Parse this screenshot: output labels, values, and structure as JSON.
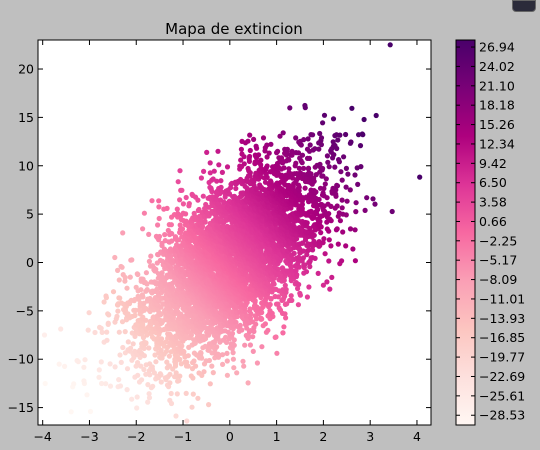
{
  "chart_data": {
    "type": "scatter",
    "title": "Mapa de extincion",
    "xlabel": "",
    "ylabel": "",
    "xlim": [
      -4.1,
      4.3
    ],
    "ylim": [
      -16.8,
      23
    ],
    "x_ticks": [
      -4,
      -3,
      -2,
      -1,
      0,
      1,
      2,
      3,
      4
    ],
    "y_ticks": [
      -15,
      -10,
      -5,
      0,
      5,
      10,
      15,
      20
    ],
    "grid": false,
    "legend": "none",
    "point_count": 5000,
    "x_mean": 0,
    "x_std": 1,
    "y_mean": 0,
    "y_std": 5,
    "correlation": 0.6,
    "color_formula": "c = 5x + y",
    "colormap": "RdPu",
    "colorbar": {
      "min": -30,
      "max": 28,
      "ticks": [
        26.94,
        24.02,
        21.1,
        18.18,
        15.26,
        12.34,
        9.42,
        6.5,
        3.58,
        0.66,
        -2.25,
        -5.17,
        -8.09,
        -11.01,
        -13.93,
        -16.85,
        -19.77,
        -22.69,
        -25.61,
        -28.53
      ],
      "tick_labels": [
        "26.94",
        "24.02",
        "21.10",
        "18.18",
        "15.26",
        "12.34",
        "9.42",
        "6.50",
        "3.58",
        "0.66",
        "−2.25",
        "−5.17",
        "−8.09",
        "−11.01",
        "−13.93",
        "−16.85",
        "−19.77",
        "−22.69",
        "−25.61",
        "−28.53"
      ]
    },
    "colors": {
      "background": "#bfbfbf",
      "plot_background": "#ffffff",
      "low": "#fff7f3",
      "mid_low": "#fcc5c0",
      "mid": "#f768a1",
      "mid_high": "#ae017e",
      "high": "#49006a"
    }
  }
}
